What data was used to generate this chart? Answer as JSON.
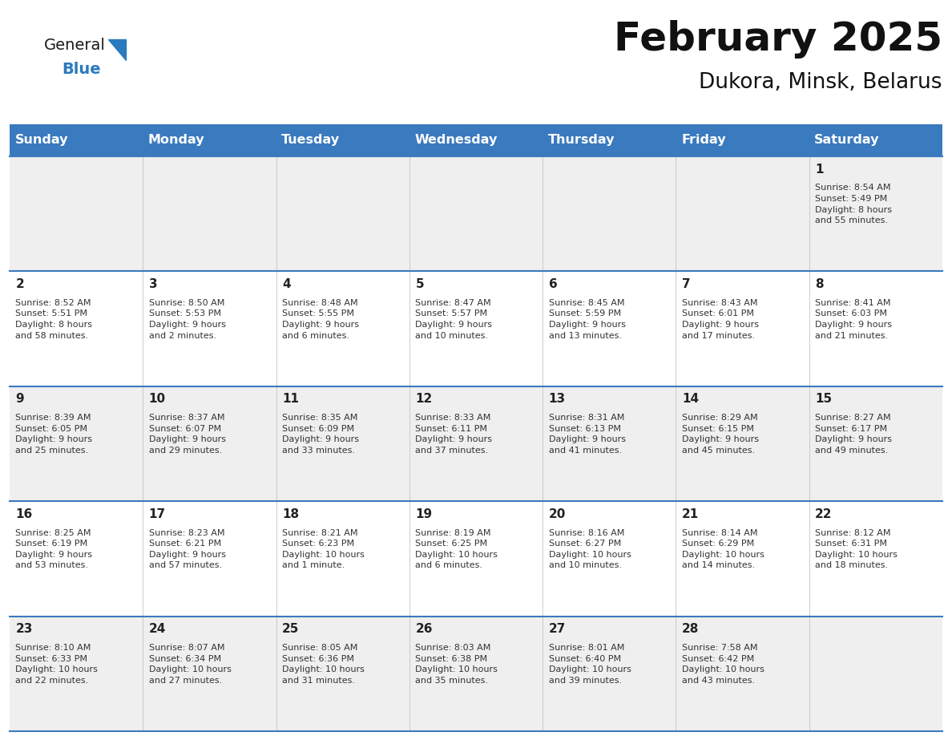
{
  "title": "February 2025",
  "subtitle": "Dukora, Minsk, Belarus",
  "header_bg": "#3a7abf",
  "header_text": "#ffffff",
  "day_names": [
    "Sunday",
    "Monday",
    "Tuesday",
    "Wednesday",
    "Thursday",
    "Friday",
    "Saturday"
  ],
  "row_colors": [
    "#efefef",
    "#ffffff",
    "#efefef",
    "#ffffff",
    "#efefef"
  ],
  "cell_text_color": "#333333",
  "day_num_color": "#222222",
  "title_color": "#111111",
  "subtitle_color": "#111111",
  "logo_general_color": "#1a1a1a",
  "logo_blue_color": "#2a7abf",
  "days": [
    {
      "day": 1,
      "col": 6,
      "row": 0,
      "sunrise": "8:54 AM",
      "sunset": "5:49 PM",
      "daylight": "8 hours\nand 55 minutes."
    },
    {
      "day": 2,
      "col": 0,
      "row": 1,
      "sunrise": "8:52 AM",
      "sunset": "5:51 PM",
      "daylight": "8 hours\nand 58 minutes."
    },
    {
      "day": 3,
      "col": 1,
      "row": 1,
      "sunrise": "8:50 AM",
      "sunset": "5:53 PM",
      "daylight": "9 hours\nand 2 minutes."
    },
    {
      "day": 4,
      "col": 2,
      "row": 1,
      "sunrise": "8:48 AM",
      "sunset": "5:55 PM",
      "daylight": "9 hours\nand 6 minutes."
    },
    {
      "day": 5,
      "col": 3,
      "row": 1,
      "sunrise": "8:47 AM",
      "sunset": "5:57 PM",
      "daylight": "9 hours\nand 10 minutes."
    },
    {
      "day": 6,
      "col": 4,
      "row": 1,
      "sunrise": "8:45 AM",
      "sunset": "5:59 PM",
      "daylight": "9 hours\nand 13 minutes."
    },
    {
      "day": 7,
      "col": 5,
      "row": 1,
      "sunrise": "8:43 AM",
      "sunset": "6:01 PM",
      "daylight": "9 hours\nand 17 minutes."
    },
    {
      "day": 8,
      "col": 6,
      "row": 1,
      "sunrise": "8:41 AM",
      "sunset": "6:03 PM",
      "daylight": "9 hours\nand 21 minutes."
    },
    {
      "day": 9,
      "col": 0,
      "row": 2,
      "sunrise": "8:39 AM",
      "sunset": "6:05 PM",
      "daylight": "9 hours\nand 25 minutes."
    },
    {
      "day": 10,
      "col": 1,
      "row": 2,
      "sunrise": "8:37 AM",
      "sunset": "6:07 PM",
      "daylight": "9 hours\nand 29 minutes."
    },
    {
      "day": 11,
      "col": 2,
      "row": 2,
      "sunrise": "8:35 AM",
      "sunset": "6:09 PM",
      "daylight": "9 hours\nand 33 minutes."
    },
    {
      "day": 12,
      "col": 3,
      "row": 2,
      "sunrise": "8:33 AM",
      "sunset": "6:11 PM",
      "daylight": "9 hours\nand 37 minutes."
    },
    {
      "day": 13,
      "col": 4,
      "row": 2,
      "sunrise": "8:31 AM",
      "sunset": "6:13 PM",
      "daylight": "9 hours\nand 41 minutes."
    },
    {
      "day": 14,
      "col": 5,
      "row": 2,
      "sunrise": "8:29 AM",
      "sunset": "6:15 PM",
      "daylight": "9 hours\nand 45 minutes."
    },
    {
      "day": 15,
      "col": 6,
      "row": 2,
      "sunrise": "8:27 AM",
      "sunset": "6:17 PM",
      "daylight": "9 hours\nand 49 minutes."
    },
    {
      "day": 16,
      "col": 0,
      "row": 3,
      "sunrise": "8:25 AM",
      "sunset": "6:19 PM",
      "daylight": "9 hours\nand 53 minutes."
    },
    {
      "day": 17,
      "col": 1,
      "row": 3,
      "sunrise": "8:23 AM",
      "sunset": "6:21 PM",
      "daylight": "9 hours\nand 57 minutes."
    },
    {
      "day": 18,
      "col": 2,
      "row": 3,
      "sunrise": "8:21 AM",
      "sunset": "6:23 PM",
      "daylight": "10 hours\nand 1 minute."
    },
    {
      "day": 19,
      "col": 3,
      "row": 3,
      "sunrise": "8:19 AM",
      "sunset": "6:25 PM",
      "daylight": "10 hours\nand 6 minutes."
    },
    {
      "day": 20,
      "col": 4,
      "row": 3,
      "sunrise": "8:16 AM",
      "sunset": "6:27 PM",
      "daylight": "10 hours\nand 10 minutes."
    },
    {
      "day": 21,
      "col": 5,
      "row": 3,
      "sunrise": "8:14 AM",
      "sunset": "6:29 PM",
      "daylight": "10 hours\nand 14 minutes."
    },
    {
      "day": 22,
      "col": 6,
      "row": 3,
      "sunrise": "8:12 AM",
      "sunset": "6:31 PM",
      "daylight": "10 hours\nand 18 minutes."
    },
    {
      "day": 23,
      "col": 0,
      "row": 4,
      "sunrise": "8:10 AM",
      "sunset": "6:33 PM",
      "daylight": "10 hours\nand 22 minutes."
    },
    {
      "day": 24,
      "col": 1,
      "row": 4,
      "sunrise": "8:07 AM",
      "sunset": "6:34 PM",
      "daylight": "10 hours\nand 27 minutes."
    },
    {
      "day": 25,
      "col": 2,
      "row": 4,
      "sunrise": "8:05 AM",
      "sunset": "6:36 PM",
      "daylight": "10 hours\nand 31 minutes."
    },
    {
      "day": 26,
      "col": 3,
      "row": 4,
      "sunrise": "8:03 AM",
      "sunset": "6:38 PM",
      "daylight": "10 hours\nand 35 minutes."
    },
    {
      "day": 27,
      "col": 4,
      "row": 4,
      "sunrise": "8:01 AM",
      "sunset": "6:40 PM",
      "daylight": "10 hours\nand 39 minutes."
    },
    {
      "day": 28,
      "col": 5,
      "row": 4,
      "sunrise": "7:58 AM",
      "sunset": "6:42 PM",
      "daylight": "10 hours\nand 43 minutes."
    }
  ]
}
